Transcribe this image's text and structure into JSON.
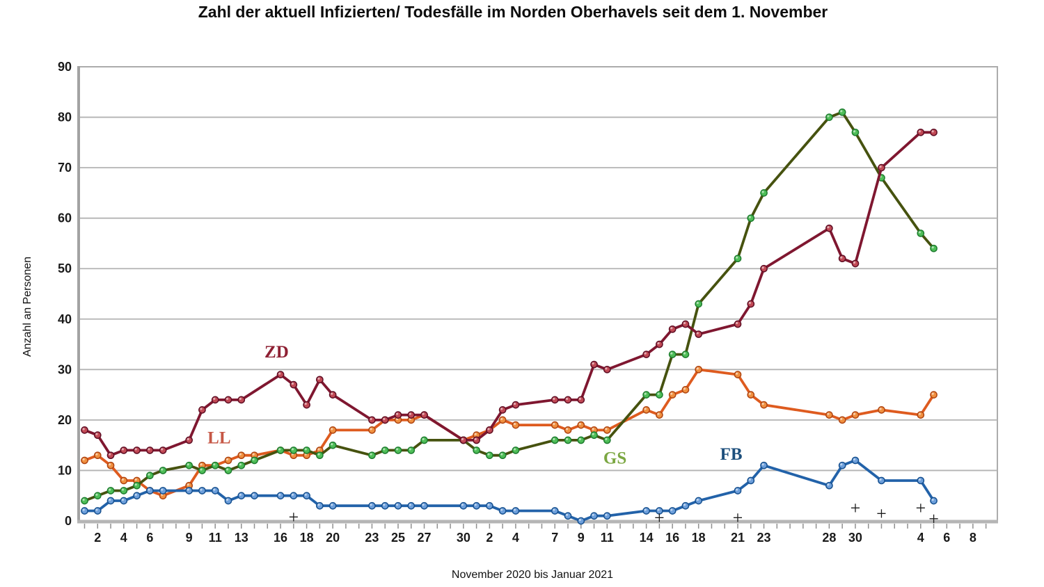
{
  "title": "Zahl der aktuell Infizierten/ Todesfälle im Norden Oberhavels seit dem 1. November",
  "y_axis_label": "Anzahl an Personen",
  "x_axis_label": "November 2020 bis Januar 2021",
  "chart_data": {
    "type": "line",
    "title": "Zahl der aktuell Infizierten/ Todesfälle im Norden Oberhavels seit dem 1. November",
    "xlabel": "November 2020 bis Januar 2021",
    "ylabel": "Anzahl an Personen",
    "ylim": [
      0,
      90
    ],
    "grid": "horizontal",
    "legend_position": "inline-labels",
    "y_ticks": [
      0,
      10,
      20,
      30,
      40,
      50,
      60,
      70,
      80,
      90
    ],
    "x_axis_note": "day index 1 = 1. November 2020, 31 = 1. Dezember 2020, 62 = 1. Januar 2021; points exist only on reporting days",
    "x_tick_labels": [
      {
        "day": 2,
        "label": "2"
      },
      {
        "day": 4,
        "label": "4"
      },
      {
        "day": 6,
        "label": "6"
      },
      {
        "day": 9,
        "label": "9"
      },
      {
        "day": 11,
        "label": "11"
      },
      {
        "day": 13,
        "label": "13"
      },
      {
        "day": 16,
        "label": "16"
      },
      {
        "day": 18,
        "label": "18"
      },
      {
        "day": 20,
        "label": "20"
      },
      {
        "day": 23,
        "label": "23"
      },
      {
        "day": 25,
        "label": "25"
      },
      {
        "day": 27,
        "label": "27"
      },
      {
        "day": 30,
        "label": "30"
      },
      {
        "day": 32,
        "label": "2"
      },
      {
        "day": 34,
        "label": "4"
      },
      {
        "day": 37,
        "label": "7"
      },
      {
        "day": 39,
        "label": "9"
      },
      {
        "day": 41,
        "label": "11"
      },
      {
        "day": 44,
        "label": "14"
      },
      {
        "day": 46,
        "label": "16"
      },
      {
        "day": 48,
        "label": "18"
      },
      {
        "day": 51,
        "label": "21"
      },
      {
        "day": 53,
        "label": "23"
      },
      {
        "day": 58,
        "label": "28"
      },
      {
        "day": 60,
        "label": "30"
      },
      {
        "day": 65,
        "label": "4"
      },
      {
        "day": 67,
        "label": "6"
      },
      {
        "day": 69,
        "label": "8"
      }
    ],
    "days": [
      1,
      2,
      3,
      4,
      5,
      6,
      7,
      9,
      10,
      11,
      12,
      13,
      14,
      16,
      17,
      18,
      19,
      20,
      23,
      24,
      25,
      26,
      27,
      30,
      31,
      32,
      33,
      34,
      37,
      38,
      39,
      40,
      41,
      44,
      45,
      46,
      47,
      48,
      51,
      52,
      53,
      58,
      59,
      60,
      62,
      65,
      66
    ],
    "series": [
      {
        "name": "LL",
        "label_color": "#c65745",
        "line_color": "#de5b1f",
        "marker_fill": "#f09040",
        "marker_edge": "#af4410",
        "label_pos": {
          "day": 11.3,
          "value": 16.5
        },
        "values": [
          12,
          13,
          11,
          8,
          8,
          6,
          5,
          7,
          11,
          11,
          12,
          13,
          13,
          14,
          13,
          13,
          14,
          18,
          18,
          20,
          20,
          20,
          21,
          16,
          17,
          18,
          20,
          19,
          19,
          18,
          19,
          18,
          18,
          22,
          21,
          25,
          26,
          30,
          29,
          25,
          23,
          21,
          20,
          21,
          22,
          21,
          25
        ]
      },
      {
        "name": "GS",
        "label_color": "#7ba742",
        "line_color": "#46520f",
        "marker_fill": "#4fbe58",
        "marker_edge": "#1e7d2f",
        "label_pos": {
          "day": 41.6,
          "value": 12.5
        },
        "values": [
          4,
          5,
          6,
          6,
          7,
          9,
          10,
          11,
          10,
          11,
          10,
          11,
          12,
          14,
          14,
          14,
          13,
          15,
          13,
          14,
          14,
          14,
          16,
          16,
          14,
          13,
          13,
          14,
          16,
          16,
          16,
          17,
          16,
          25,
          25,
          33,
          33,
          43,
          52,
          60,
          65,
          80,
          81,
          77,
          68,
          57,
          54
        ]
      },
      {
        "name": "ZD",
        "label_color": "#8e2033",
        "line_color": "#7f1730",
        "marker_fill": "#c14955",
        "marker_edge": "#5f0e24",
        "label_pos": {
          "day": 15.7,
          "value": 33.5
        },
        "values": [
          18,
          17,
          13,
          14,
          14,
          14,
          14,
          16,
          22,
          24,
          24,
          24,
          null,
          29,
          27,
          23,
          28,
          25,
          20,
          20,
          21,
          21,
          21,
          16,
          16,
          18,
          22,
          23,
          24,
          24,
          24,
          31,
          30,
          33,
          35,
          38,
          39,
          37,
          39,
          43,
          50,
          58,
          52,
          51,
          70,
          77,
          77
        ]
      },
      {
        "name": "FB",
        "label_color": "#1d4f7c",
        "line_color": "#2262a9",
        "marker_fill": "#6d9fdb",
        "marker_edge": "#16508f",
        "label_pos": {
          "day": 50.5,
          "value": 13.2
        },
        "values": [
          2,
          2,
          4,
          4,
          5,
          6,
          6,
          6,
          6,
          6,
          4,
          5,
          5,
          5,
          5,
          5,
          3,
          3,
          3,
          3,
          3,
          3,
          3,
          3,
          3,
          3,
          2,
          2,
          2,
          1,
          0,
          1,
          1,
          2,
          2,
          2,
          3,
          4,
          6,
          8,
          11,
          7,
          11,
          12,
          8,
          8,
          4
        ]
      }
    ],
    "deaths": {
      "symbol": "+",
      "points": [
        {
          "day": 17,
          "value": 0.8
        },
        {
          "day": 45,
          "value": 0.7
        },
        {
          "day": 51,
          "value": 0.7
        },
        {
          "day": 60,
          "value": 2.6
        },
        {
          "day": 62,
          "value": 1.5
        },
        {
          "day": 65,
          "value": 2.6
        },
        {
          "day": 66,
          "value": 0.5
        }
      ]
    }
  }
}
